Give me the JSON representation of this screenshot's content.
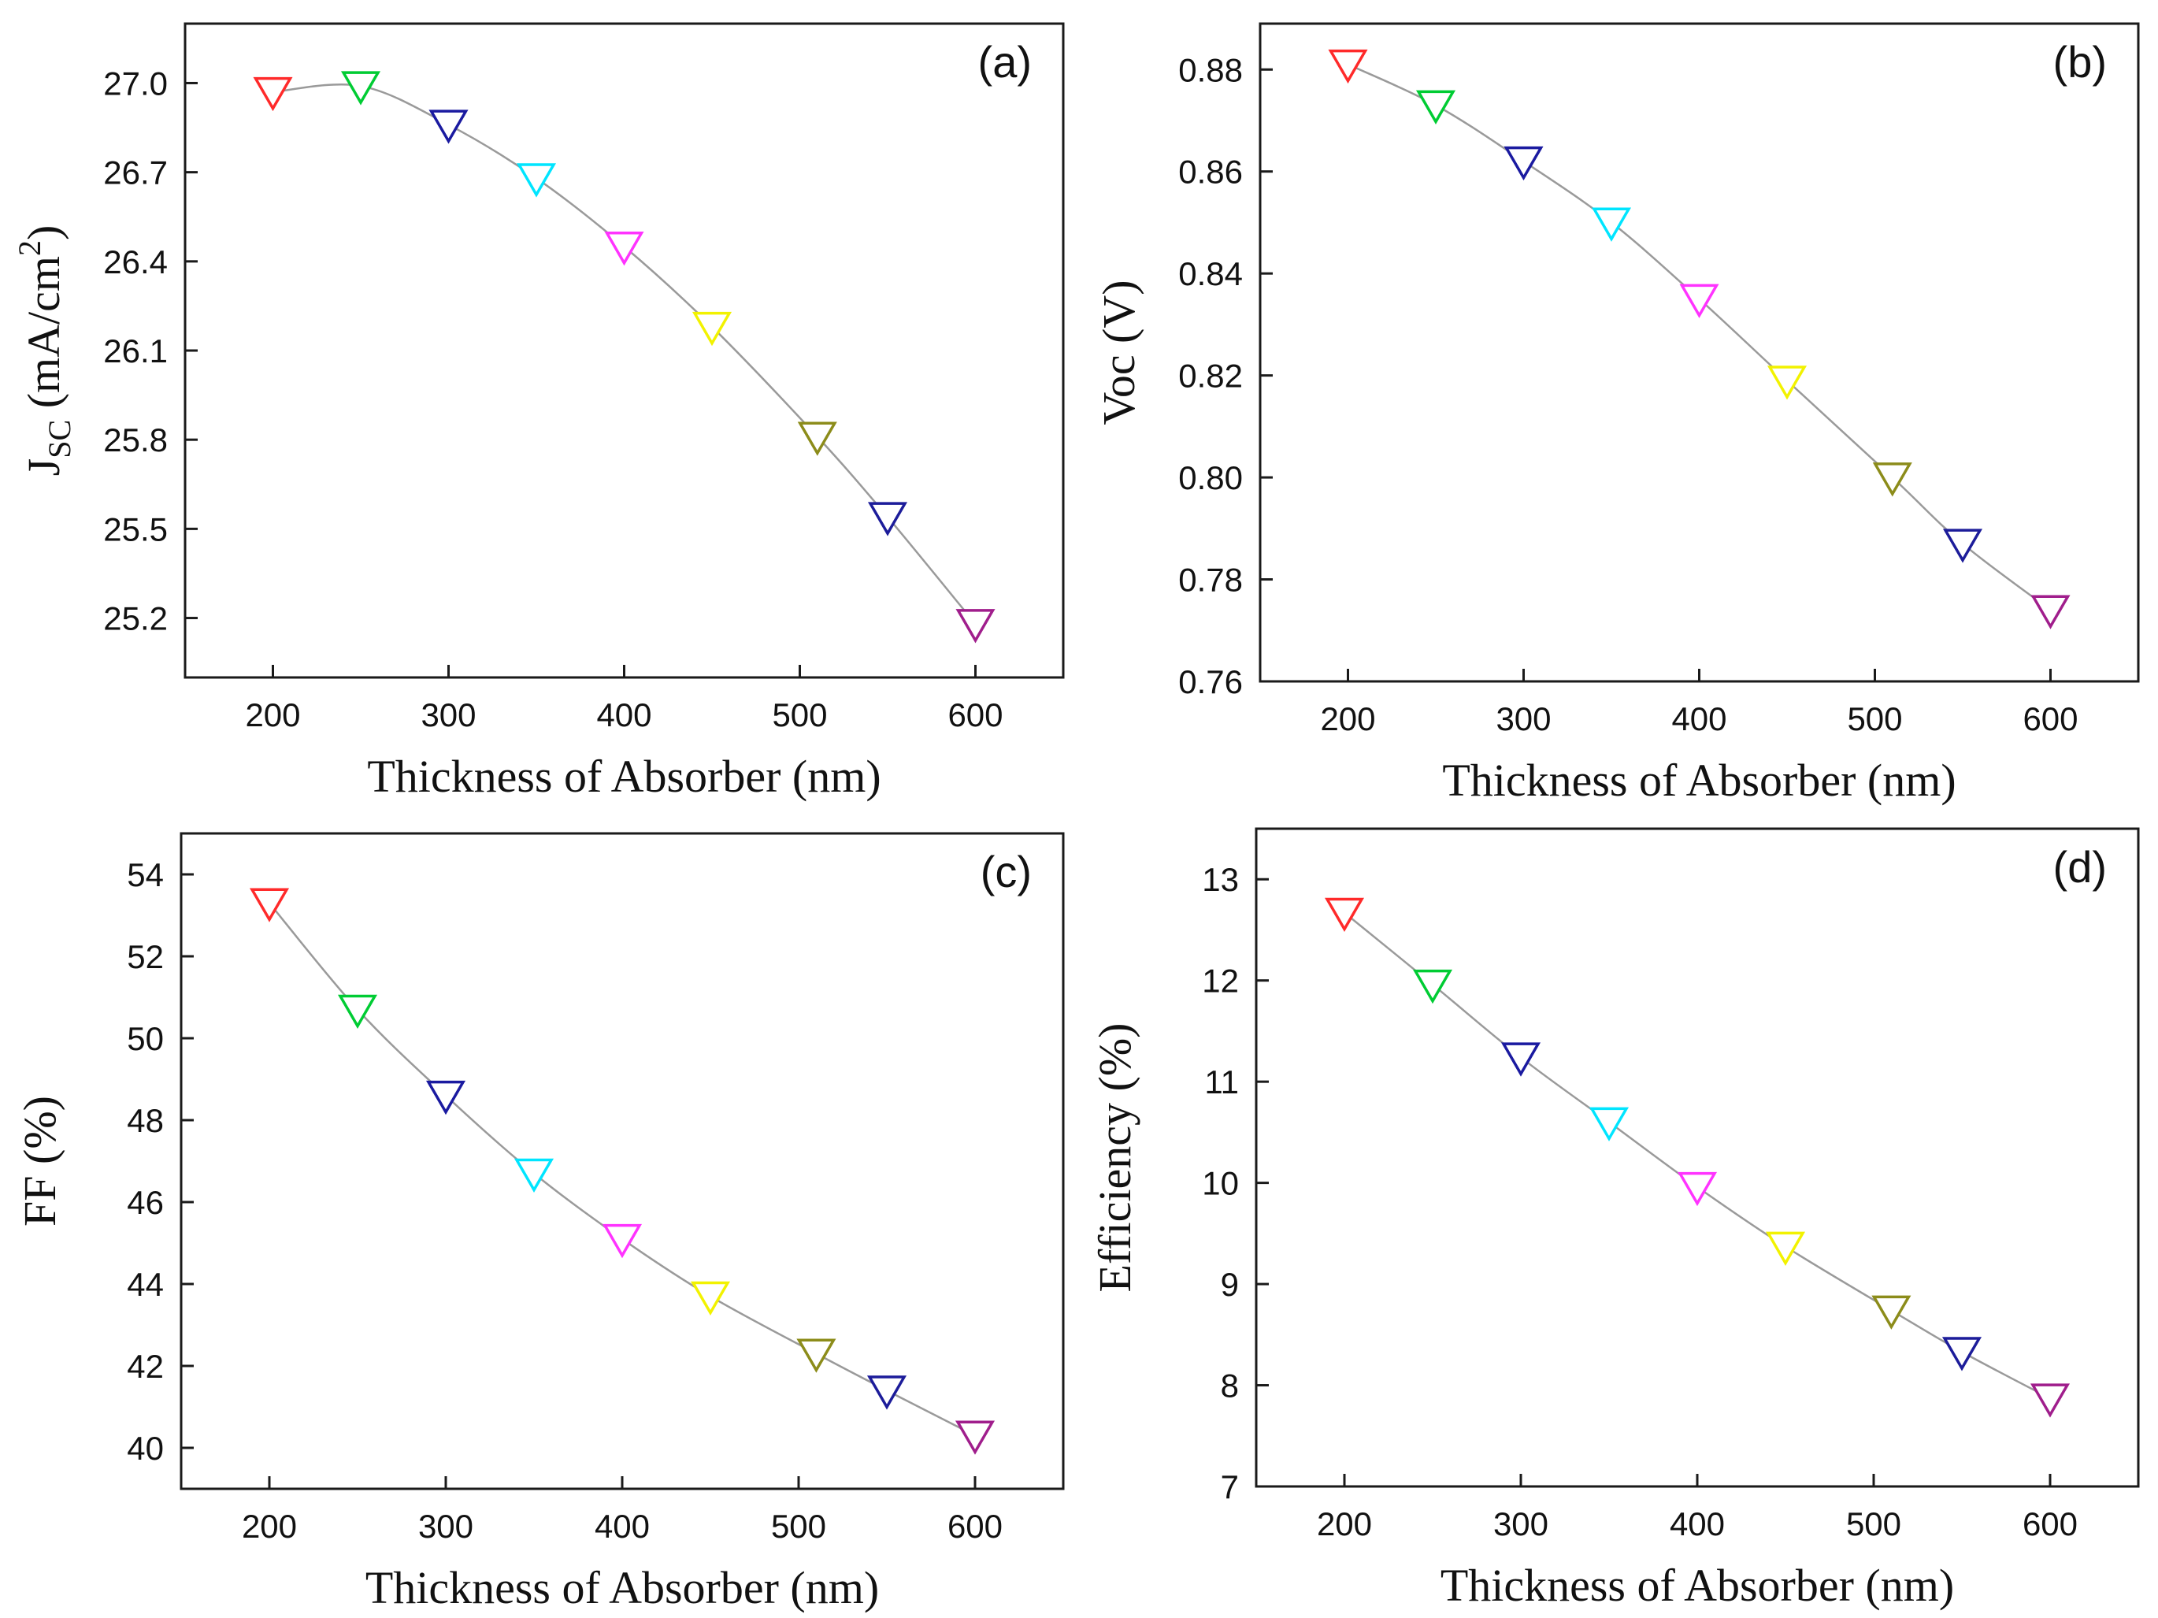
{
  "figure": {
    "marker_colors": [
      "#ff2a2a",
      "#00cc33",
      "#1a1aa0",
      "#00e5ff",
      "#ff33ff",
      "#f2f200",
      "#8c8c1a",
      "#1c1c9a",
      "#a01e8c"
    ],
    "line_color": "#9a9a9a"
  },
  "chart_data": [
    {
      "type": "line",
      "panel_label": "(a)",
      "xlabel": "Thickness of Absorber (nm)",
      "ylabel": {
        "main": "J",
        "sub": "SC",
        "rest": " (mA/cm",
        "sup": "2",
        "close": ")"
      },
      "x": [
        200,
        250,
        300,
        350,
        400,
        450,
        510,
        550,
        600
      ],
      "y": [
        26.97,
        26.99,
        26.86,
        26.68,
        26.45,
        26.18,
        25.81,
        25.54,
        25.18
      ],
      "xlim": [
        150,
        650
      ],
      "ylim": [
        25.0,
        27.2
      ],
      "xticks": [
        "200",
        "300",
        "400",
        "500",
        "600"
      ],
      "yticks": [
        "25.2",
        "25.5",
        "25.8",
        "26.1",
        "26.4",
        "26.7",
        "27.0"
      ],
      "marker": "triangle-down-open"
    },
    {
      "type": "line",
      "panel_label": "(b)",
      "xlabel": "Thickness of Absorber (nm)",
      "ylabel": {
        "main": "Voc (V)"
      },
      "x": [
        200,
        250,
        300,
        350,
        400,
        450,
        510,
        550,
        600
      ],
      "y": [
        0.881,
        0.873,
        0.862,
        0.85,
        0.835,
        0.819,
        0.8,
        0.787,
        0.774
      ],
      "xlim": [
        150,
        650
      ],
      "ylim": [
        0.76,
        0.889
      ],
      "xticks": [
        "200",
        "300",
        "400",
        "500",
        "600"
      ],
      "yticks": [
        "0.76",
        "0.78",
        "0.80",
        "0.82",
        "0.84",
        "0.86",
        "0.88"
      ],
      "marker": "triangle-down-open"
    },
    {
      "type": "line",
      "panel_label": "(c)",
      "xlabel": "Thickness of Absorber (nm)",
      "ylabel": {
        "main": "FF (%)"
      },
      "x": [
        200,
        250,
        300,
        350,
        400,
        450,
        510,
        550,
        600
      ],
      "y": [
        53.3,
        50.7,
        48.6,
        46.7,
        45.1,
        43.7,
        42.3,
        41.4,
        40.3
      ],
      "xlim": [
        150,
        650
      ],
      "ylim": [
        39.0,
        55.0
      ],
      "xticks": [
        "200",
        "300",
        "400",
        "500",
        "600"
      ],
      "yticks": [
        "40",
        "42",
        "44",
        "46",
        "48",
        "50",
        "52",
        "54"
      ],
      "marker": "triangle-down-open"
    },
    {
      "type": "line",
      "panel_label": "(d)",
      "xlabel": "Thickness of Absorber (nm)",
      "ylabel": {
        "main": "Efficiency (%)"
      },
      "x": [
        200,
        250,
        300,
        350,
        400,
        450,
        510,
        550,
        600
      ],
      "y": [
        12.67,
        11.96,
        11.24,
        10.6,
        9.96,
        9.37,
        8.74,
        8.33,
        7.87
      ],
      "xlim": [
        150,
        650
      ],
      "ylim": [
        7.0,
        13.5
      ],
      "xticks": [
        "200",
        "300",
        "400",
        "500",
        "600"
      ],
      "yticks": [
        "7",
        "8",
        "9",
        "10",
        "11",
        "12",
        "13"
      ],
      "marker": "triangle-down-open"
    }
  ]
}
